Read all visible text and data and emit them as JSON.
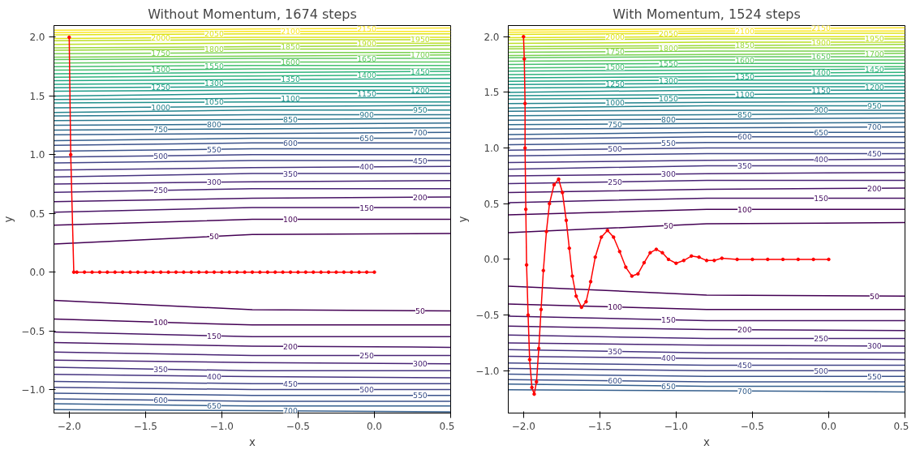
{
  "chart_data": [
    {
      "type": "line",
      "title": "Without Momentum, 1674 steps",
      "xlabel": "x",
      "ylabel": "y",
      "x": [
        -2.1,
        -0.8,
        0.5
      ],
      "xlim": [
        -2.1,
        0.5
      ],
      "ylim": [
        -1.2,
        2.1
      ],
      "xticks": [
        {
          "value": -2.0,
          "label": "−2.0"
        },
        {
          "value": -1.5,
          "label": "−1.5"
        },
        {
          "value": -1.0,
          "label": "−1.0"
        },
        {
          "value": -0.5,
          "label": "−0.5"
        },
        {
          "value": 0.0,
          "label": "0.0"
        },
        {
          "value": 0.5,
          "label": "0.5"
        }
      ],
      "yticks": [
        {
          "value": -1.0,
          "label": "−1.0"
        },
        {
          "value": -0.5,
          "label": "−0.5"
        },
        {
          "value": 0.0,
          "label": "0.0"
        },
        {
          "value": 0.5,
          "label": "0.5"
        },
        {
          "value": 1.0,
          "label": "1.0"
        },
        {
          "value": 1.5,
          "label": "1.5"
        },
        {
          "value": 2.0,
          "label": "2.0"
        }
      ],
      "grid": false,
      "series": [
        {
          "name": "50",
          "color": "#440154",
          "values": [
            0.24,
            0.32,
            0.33
          ]
        },
        {
          "name": "100",
          "color": "#440154",
          "values": [
            0.4,
            0.45,
            0.45
          ]
        },
        {
          "name": "150",
          "color": "#471365",
          "values": [
            0.51,
            0.55,
            0.55
          ]
        },
        {
          "name": "200",
          "color": "#471365",
          "values": [
            0.6,
            0.63,
            0.64
          ]
        },
        {
          "name": "250",
          "color": "#482475",
          "values": [
            0.68,
            0.71,
            0.71
          ]
        },
        {
          "name": "300",
          "color": "#482475",
          "values": [
            0.75,
            0.77,
            0.78
          ]
        },
        {
          "name": "350",
          "color": "#463480",
          "values": [
            0.81,
            0.84,
            0.84
          ]
        },
        {
          "name": "400",
          "color": "#463480",
          "values": [
            0.87,
            0.89,
            0.9
          ]
        },
        {
          "name": "450",
          "color": "#414487",
          "values": [
            0.93,
            0.95,
            0.95
          ]
        },
        {
          "name": "500",
          "color": "#414487",
          "values": [
            0.98,
            1.0,
            1.0
          ]
        },
        {
          "name": "550",
          "color": "#3b528b",
          "values": [
            1.03,
            1.05,
            1.05
          ]
        },
        {
          "name": "600",
          "color": "#3b528b",
          "values": [
            1.08,
            1.1,
            1.1
          ]
        },
        {
          "name": "650",
          "color": "#355f8d",
          "values": [
            1.12,
            1.14,
            1.14
          ]
        },
        {
          "name": "700",
          "color": "#355f8d",
          "values": [
            1.17,
            1.18,
            1.19
          ]
        },
        {
          "name": "750",
          "color": "#2f6c8e",
          "values": [
            1.21,
            1.22,
            1.23
          ]
        },
        {
          "name": "800",
          "color": "#2f6c8e",
          "values": [
            1.25,
            1.26,
            1.27
          ]
        },
        {
          "name": "850",
          "color": "#2a788e",
          "values": [
            1.29,
            1.3,
            1.31
          ]
        },
        {
          "name": "900",
          "color": "#2a788e",
          "values": [
            1.33,
            1.34,
            1.34
          ]
        },
        {
          "name": "950",
          "color": "#25848e",
          "values": [
            1.36,
            1.38,
            1.38
          ]
        },
        {
          "name": "1000",
          "color": "#25848e",
          "values": [
            1.4,
            1.41,
            1.42
          ]
        },
        {
          "name": "1050",
          "color": "#21918c",
          "values": [
            1.44,
            1.45,
            1.45
          ]
        },
        {
          "name": "1100",
          "color": "#21918c",
          "values": [
            1.47,
            1.48,
            1.49
          ]
        },
        {
          "name": "1150",
          "color": "#21918c",
          "values": [
            1.5,
            1.52,
            1.52
          ]
        },
        {
          "name": "1200",
          "color": "#1e9c89",
          "values": [
            1.54,
            1.55,
            1.55
          ]
        },
        {
          "name": "1250",
          "color": "#1e9c89",
          "values": [
            1.57,
            1.58,
            1.58
          ]
        },
        {
          "name": "1300",
          "color": "#22a884",
          "values": [
            1.6,
            1.61,
            1.61
          ]
        },
        {
          "name": "1350",
          "color": "#22a884",
          "values": [
            1.63,
            1.64,
            1.65
          ]
        },
        {
          "name": "1400",
          "color": "#2fb47c",
          "values": [
            1.66,
            1.67,
            1.68
          ]
        },
        {
          "name": "1450",
          "color": "#2fb47c",
          "values": [
            1.69,
            1.7,
            1.71
          ]
        },
        {
          "name": "1500",
          "color": "#44bf70",
          "values": [
            1.72,
            1.73,
            1.73
          ]
        },
        {
          "name": "1550",
          "color": "#44bf70",
          "values": [
            1.75,
            1.76,
            1.76
          ]
        },
        {
          "name": "1600",
          "color": "#5ec962",
          "values": [
            1.78,
            1.79,
            1.79
          ]
        },
        {
          "name": "1650",
          "color": "#5ec962",
          "values": [
            1.81,
            1.82,
            1.82
          ]
        },
        {
          "name": "1700",
          "color": "#7ad151",
          "values": [
            1.83,
            1.84,
            1.85
          ]
        },
        {
          "name": "1750",
          "color": "#7ad151",
          "values": [
            1.86,
            1.87,
            1.87
          ]
        },
        {
          "name": "1800",
          "color": "#9bd93c",
          "values": [
            1.89,
            1.9,
            1.9
          ]
        },
        {
          "name": "1850",
          "color": "#9bd93c",
          "values": [
            1.91,
            1.92,
            1.93
          ]
        },
        {
          "name": "1900",
          "color": "#bddf26",
          "values": [
            1.94,
            1.95,
            1.95
          ]
        },
        {
          "name": "1950",
          "color": "#bddf26",
          "values": [
            1.97,
            1.98,
            1.98
          ]
        },
        {
          "name": "2000",
          "color": "#dfe318",
          "values": [
            1.99,
            2.0,
            2.0
          ]
        },
        {
          "name": "2050",
          "color": "#dfe318",
          "values": [
            2.02,
            2.03,
            2.03
          ]
        },
        {
          "name": "2100",
          "color": "#fde725",
          "values": [
            2.04,
            2.05,
            2.05
          ]
        },
        {
          "name": "2150",
          "color": "#fde725",
          "values": [
            2.06,
            2.07,
            2.08
          ]
        },
        {
          "name": "50",
          "color": "#440154",
          "values": [
            -0.24,
            -0.32,
            -0.33
          ]
        },
        {
          "name": "100",
          "color": "#440154",
          "values": [
            -0.4,
            -0.45,
            -0.45
          ]
        },
        {
          "name": "150",
          "color": "#471365",
          "values": [
            -0.51,
            -0.55,
            -0.55
          ]
        },
        {
          "name": "200",
          "color": "#471365",
          "values": [
            -0.6,
            -0.63,
            -0.64
          ]
        },
        {
          "name": "250",
          "color": "#482475",
          "values": [
            -0.68,
            -0.71,
            -0.71
          ]
        },
        {
          "name": "300",
          "color": "#482475",
          "values": [
            -0.75,
            -0.77,
            -0.78
          ]
        },
        {
          "name": "350",
          "color": "#463480",
          "values": [
            -0.81,
            -0.84,
            -0.84
          ]
        },
        {
          "name": "400",
          "color": "#463480",
          "values": [
            -0.87,
            -0.89,
            -0.9
          ]
        },
        {
          "name": "450",
          "color": "#414487",
          "values": [
            -0.93,
            -0.95,
            -0.95
          ]
        },
        {
          "name": "500",
          "color": "#414487",
          "values": [
            -0.98,
            -1.0,
            -1.0
          ]
        },
        {
          "name": "550",
          "color": "#3b528b",
          "values": [
            -1.03,
            -1.05,
            -1.05
          ]
        },
        {
          "name": "600",
          "color": "#3b528b",
          "values": [
            -1.08,
            -1.1,
            -1.1
          ]
        },
        {
          "name": "650",
          "color": "#355f8d",
          "values": [
            -1.12,
            -1.14,
            -1.14
          ]
        },
        {
          "name": "700",
          "color": "#355f8d",
          "values": [
            -1.17,
            -1.18,
            -1.19
          ]
        },
        {
          "color": "#ff0000",
          "marker": "circle",
          "x": [
            -2.0,
            -1.99,
            -1.97,
            -1.95,
            -1.9,
            -1.85,
            -1.8,
            -1.75,
            -1.7,
            -1.65,
            -1.6,
            -1.55,
            -1.5,
            -1.45,
            -1.4,
            -1.35,
            -1.3,
            -1.25,
            -1.2,
            -1.15,
            -1.1,
            -1.05,
            -1.0,
            -0.95,
            -0.9,
            -0.85,
            -0.8,
            -0.75,
            -0.7,
            -0.65,
            -0.6,
            -0.55,
            -0.5,
            -0.45,
            -0.4,
            -0.35,
            -0.3,
            -0.25,
            -0.2,
            -0.15,
            -0.1,
            -0.05,
            0.0
          ],
          "values": [
            2.0,
            1.0,
            0.0,
            0.0,
            0.0,
            0.0,
            0.0,
            0.0,
            0.0,
            0.0,
            0.0,
            0.0,
            0.0,
            0.0,
            0.0,
            0.0,
            0.0,
            0.0,
            0.0,
            0.0,
            0.0,
            0.0,
            0.0,
            0.0,
            0.0,
            0.0,
            0.0,
            0.0,
            0.0,
            0.0,
            0.0,
            0.0,
            0.0,
            0.0,
            0.0,
            0.0,
            0.0,
            0.0,
            0.0,
            0.0,
            0.0,
            0.0,
            0.0
          ]
        }
      ]
    },
    {
      "type": "line",
      "title": "With Momentum, 1524 steps",
      "xlabel": "x",
      "ylabel": "y",
      "x": [
        -2.1,
        -0.8,
        0.5
      ],
      "xlim": [
        -2.1,
        0.5
      ],
      "ylim": [
        -1.38,
        2.1
      ],
      "xticks": [
        {
          "value": -2.0,
          "label": "−2.0"
        },
        {
          "value": -1.5,
          "label": "−1.5"
        },
        {
          "value": -1.0,
          "label": "−1.0"
        },
        {
          "value": -0.5,
          "label": "−0.5"
        },
        {
          "value": 0.0,
          "label": "0.0"
        },
        {
          "value": 0.5,
          "label": "0.5"
        }
      ],
      "yticks": [
        {
          "value": -1.0,
          "label": "−1.0"
        },
        {
          "value": -0.5,
          "label": "−0.5"
        },
        {
          "value": 0.0,
          "label": "0.0"
        },
        {
          "value": 0.5,
          "label": "0.5"
        },
        {
          "value": 1.0,
          "label": "1.0"
        },
        {
          "value": 1.5,
          "label": "1.5"
        },
        {
          "value": 2.0,
          "label": "2.0"
        }
      ],
      "grid": false,
      "series": [
        {
          "name": "50",
          "color": "#440154",
          "values": [
            0.24,
            0.32,
            0.33
          ]
        },
        {
          "name": "100",
          "color": "#440154",
          "values": [
            0.4,
            0.45,
            0.45
          ]
        },
        {
          "name": "150",
          "color": "#471365",
          "values": [
            0.51,
            0.55,
            0.55
          ]
        },
        {
          "name": "200",
          "color": "#471365",
          "values": [
            0.6,
            0.63,
            0.64
          ]
        },
        {
          "name": "250",
          "color": "#482475",
          "values": [
            0.68,
            0.71,
            0.71
          ]
        },
        {
          "name": "300",
          "color": "#482475",
          "values": [
            0.75,
            0.77,
            0.78
          ]
        },
        {
          "name": "350",
          "color": "#463480",
          "values": [
            0.81,
            0.84,
            0.84
          ]
        },
        {
          "name": "400",
          "color": "#463480",
          "values": [
            0.87,
            0.89,
            0.9
          ]
        },
        {
          "name": "450",
          "color": "#414487",
          "values": [
            0.93,
            0.95,
            0.95
          ]
        },
        {
          "name": "500",
          "color": "#414487",
          "values": [
            0.98,
            1.0,
            1.0
          ]
        },
        {
          "name": "550",
          "color": "#3b528b",
          "values": [
            1.03,
            1.05,
            1.05
          ]
        },
        {
          "name": "600",
          "color": "#3b528b",
          "values": [
            1.08,
            1.1,
            1.1
          ]
        },
        {
          "name": "650",
          "color": "#355f8d",
          "values": [
            1.12,
            1.14,
            1.14
          ]
        },
        {
          "name": "700",
          "color": "#355f8d",
          "values": [
            1.17,
            1.18,
            1.19
          ]
        },
        {
          "name": "750",
          "color": "#2f6c8e",
          "values": [
            1.21,
            1.22,
            1.23
          ]
        },
        {
          "name": "800",
          "color": "#2f6c8e",
          "values": [
            1.25,
            1.26,
            1.27
          ]
        },
        {
          "name": "850",
          "color": "#2a788e",
          "values": [
            1.29,
            1.3,
            1.31
          ]
        },
        {
          "name": "900",
          "color": "#2a788e",
          "values": [
            1.33,
            1.34,
            1.34
          ]
        },
        {
          "name": "950",
          "color": "#25848e",
          "values": [
            1.36,
            1.38,
            1.38
          ]
        },
        {
          "name": "1000",
          "color": "#25848e",
          "values": [
            1.4,
            1.41,
            1.42
          ]
        },
        {
          "name": "1050",
          "color": "#21918c",
          "values": [
            1.44,
            1.45,
            1.45
          ]
        },
        {
          "name": "1100",
          "color": "#21918c",
          "values": [
            1.47,
            1.48,
            1.49
          ]
        },
        {
          "name": "1150",
          "color": "#21918c",
          "values": [
            1.5,
            1.52,
            1.52
          ]
        },
        {
          "name": "1200",
          "color": "#1e9c89",
          "values": [
            1.54,
            1.55,
            1.55
          ]
        },
        {
          "name": "1250",
          "color": "#1e9c89",
          "values": [
            1.57,
            1.58,
            1.58
          ]
        },
        {
          "name": "1300",
          "color": "#22a884",
          "values": [
            1.6,
            1.61,
            1.61
          ]
        },
        {
          "name": "1350",
          "color": "#22a884",
          "values": [
            1.63,
            1.64,
            1.65
          ]
        },
        {
          "name": "1400",
          "color": "#2fb47c",
          "values": [
            1.66,
            1.67,
            1.68
          ]
        },
        {
          "name": "1450",
          "color": "#2fb47c",
          "values": [
            1.69,
            1.7,
            1.71
          ]
        },
        {
          "name": "1500",
          "color": "#44bf70",
          "values": [
            1.72,
            1.73,
            1.73
          ]
        },
        {
          "name": "1550",
          "color": "#44bf70",
          "values": [
            1.75,
            1.76,
            1.76
          ]
        },
        {
          "name": "1600",
          "color": "#5ec962",
          "values": [
            1.78,
            1.79,
            1.79
          ]
        },
        {
          "name": "1650",
          "color": "#5ec962",
          "values": [
            1.81,
            1.82,
            1.82
          ]
        },
        {
          "name": "1700",
          "color": "#7ad151",
          "values": [
            1.83,
            1.84,
            1.85
          ]
        },
        {
          "name": "1750",
          "color": "#7ad151",
          "values": [
            1.86,
            1.87,
            1.87
          ]
        },
        {
          "name": "1800",
          "color": "#9bd93c",
          "values": [
            1.89,
            1.9,
            1.9
          ]
        },
        {
          "name": "1850",
          "color": "#9bd93c",
          "values": [
            1.91,
            1.92,
            1.93
          ]
        },
        {
          "name": "1900",
          "color": "#bddf26",
          "values": [
            1.94,
            1.95,
            1.95
          ]
        },
        {
          "name": "1950",
          "color": "#bddf26",
          "values": [
            1.97,
            1.98,
            1.98
          ]
        },
        {
          "name": "2000",
          "color": "#dfe318",
          "values": [
            1.99,
            2.0,
            2.0
          ]
        },
        {
          "name": "2050",
          "color": "#dfe318",
          "values": [
            2.02,
            2.03,
            2.03
          ]
        },
        {
          "name": "2100",
          "color": "#fde725",
          "values": [
            2.04,
            2.05,
            2.05
          ]
        },
        {
          "name": "2150",
          "color": "#fde725",
          "values": [
            2.06,
            2.07,
            2.08
          ]
        },
        {
          "name": "50",
          "color": "#440154",
          "values": [
            -0.24,
            -0.32,
            -0.33
          ]
        },
        {
          "name": "100",
          "color": "#440154",
          "values": [
            -0.4,
            -0.45,
            -0.45
          ]
        },
        {
          "name": "150",
          "color": "#471365",
          "values": [
            -0.51,
            -0.55,
            -0.55
          ]
        },
        {
          "name": "200",
          "color": "#471365",
          "values": [
            -0.6,
            -0.63,
            -0.64
          ]
        },
        {
          "name": "250",
          "color": "#482475",
          "values": [
            -0.68,
            -0.71,
            -0.71
          ]
        },
        {
          "name": "300",
          "color": "#482475",
          "values": [
            -0.75,
            -0.77,
            -0.78
          ]
        },
        {
          "name": "350",
          "color": "#463480",
          "values": [
            -0.81,
            -0.84,
            -0.84
          ]
        },
        {
          "name": "400",
          "color": "#463480",
          "values": [
            -0.87,
            -0.89,
            -0.9
          ]
        },
        {
          "name": "450",
          "color": "#414487",
          "values": [
            -0.93,
            -0.95,
            -0.95
          ]
        },
        {
          "name": "500",
          "color": "#414487",
          "values": [
            -0.98,
            -1.0,
            -1.0
          ]
        },
        {
          "name": "550",
          "color": "#3b528b",
          "values": [
            -1.03,
            -1.05,
            -1.05
          ]
        },
        {
          "name": "600",
          "color": "#3b528b",
          "values": [
            -1.08,
            -1.1,
            -1.1
          ]
        },
        {
          "name": "650",
          "color": "#355f8d",
          "values": [
            -1.12,
            -1.14,
            -1.14
          ]
        },
        {
          "name": "700",
          "color": "#355f8d",
          "values": [
            -1.17,
            -1.18,
            -1.19
          ]
        },
        {
          "color": "#ff0000",
          "marker": "circle",
          "x": [
            -2.0,
            -1.995,
            -1.99,
            -1.99,
            -1.985,
            -1.98,
            -1.97,
            -1.96,
            -1.945,
            -1.93,
            -1.915,
            -1.9,
            -1.885,
            -1.87,
            -1.85,
            -1.83,
            -1.8,
            -1.77,
            -1.745,
            -1.72,
            -1.7,
            -1.68,
            -1.655,
            -1.62,
            -1.59,
            -1.56,
            -1.53,
            -1.49,
            -1.45,
            -1.41,
            -1.37,
            -1.33,
            -1.29,
            -1.25,
            -1.21,
            -1.17,
            -1.13,
            -1.09,
            -1.05,
            -1.0,
            -0.95,
            -0.9,
            -0.85,
            -0.8,
            -0.75,
            -0.7,
            -0.6,
            -0.5,
            -0.4,
            -0.3,
            -0.2,
            -0.1,
            0.0
          ],
          "values": [
            2.0,
            1.8,
            1.4,
            1.0,
            0.45,
            -0.05,
            -0.5,
            -0.9,
            -1.15,
            -1.21,
            -1.1,
            -0.8,
            -0.45,
            -0.1,
            0.25,
            0.5,
            0.67,
            0.72,
            0.6,
            0.35,
            0.1,
            -0.15,
            -0.33,
            -0.43,
            -0.38,
            -0.2,
            0.02,
            0.2,
            0.26,
            0.2,
            0.07,
            -0.07,
            -0.15,
            -0.13,
            -0.03,
            0.06,
            0.09,
            0.06,
            0.0,
            -0.035,
            -0.01,
            0.03,
            0.02,
            -0.01,
            -0.01,
            0.01,
            0.0,
            0.0,
            0.0,
            0.0,
            0.0,
            0.0,
            0.0
          ]
        }
      ]
    }
  ]
}
